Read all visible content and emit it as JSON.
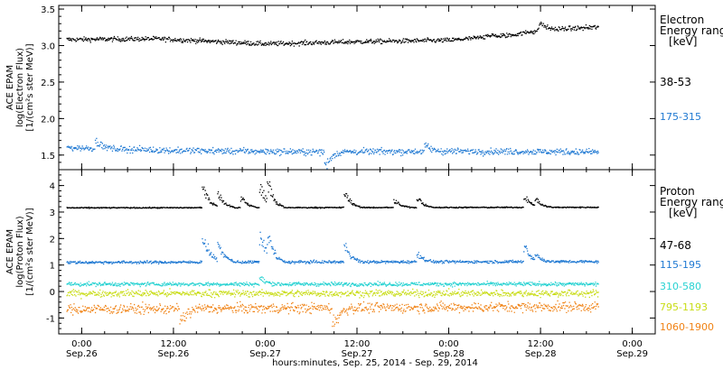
{
  "chart_data": {
    "type": "scatter",
    "xlabel": "hours:minutes, Sep. 25, 2014 - Sep. 29, 2014",
    "x_ticks": [
      {
        "time": "0:00",
        "date": "Sep.26",
        "hour": 0
      },
      {
        "time": "12:00",
        "date": "Sep.26",
        "hour": 12
      },
      {
        "time": "0:00",
        "date": "Sep.27",
        "hour": 24
      },
      {
        "time": "12:00",
        "date": "Sep.27",
        "hour": 36
      },
      {
        "time": "0:00",
        "date": "Sep.28",
        "hour": 48
      },
      {
        "time": "12:00",
        "date": "Sep.28",
        "hour": 60
      },
      {
        "time": "0:00",
        "date": "Sep.29",
        "hour": 72
      }
    ],
    "xlim_hours": [
      -3,
      75
    ],
    "data_end_hour": 67.5,
    "panels": [
      {
        "id": "electron",
        "ylabel": [
          "ACE EPAM",
          "log(Electron Flux)",
          "[1/(cm²s ster MeV)]"
        ],
        "ylim": [
          1.3,
          3.55
        ],
        "y_ticks": [
          "1.5",
          "2.0",
          "2.5",
          "3.0",
          "3.5"
        ],
        "y_tick_values": [
          1.5,
          2.0,
          2.5,
          3.0,
          3.5
        ],
        "legend_title": [
          "Electron",
          "Energy ranges",
          "[keV]"
        ],
        "series": [
          {
            "name": "38-53",
            "color": "#000000",
            "trend": [
              [
                -2,
                3.09
              ],
              [
                10,
                3.1
              ],
              [
                24,
                3.03
              ],
              [
                36,
                3.06
              ],
              [
                48,
                3.08
              ],
              [
                56,
                3.15
              ],
              [
                60,
                3.22
              ],
              [
                67.5,
                3.26
              ]
            ],
            "noise": 0.03,
            "spikes": [
              [
                60,
                3.35
              ],
              [
                53,
                3.17
              ]
            ]
          },
          {
            "name": "175-315",
            "color": "#1e78d2",
            "trend": [
              [
                -2,
                1.61
              ],
              [
                12,
                1.57
              ],
              [
                30,
                1.55
              ],
              [
                48,
                1.56
              ],
              [
                67.5,
                1.55
              ]
            ],
            "noise": 0.04,
            "spikes": [
              [
                2,
                1.72
              ],
              [
                32,
                1.32
              ],
              [
                45,
                1.65
              ]
            ]
          }
        ]
      },
      {
        "id": "proton",
        "ylabel": [
          "ACE EPAM",
          "log(Proton Flux)",
          "[1/(cm²s ster MeV)]"
        ],
        "ylim": [
          -1.6,
          4.6
        ],
        "y_ticks": [
          "-1",
          "0",
          "1",
          "2",
          "3",
          "4"
        ],
        "y_tick_values": [
          -1,
          0,
          1,
          2,
          3,
          4
        ],
        "legend_title": [
          "Proton",
          "Energy ranges",
          "[keV]"
        ],
        "series": [
          {
            "name": "47-68",
            "color": "#000000",
            "trend": [
              [
                -2,
                3.18
              ],
              [
                67.5,
                3.2
              ]
            ],
            "noise": 0.02,
            "spikes": [
              [
                16,
                4.1
              ],
              [
                18,
                3.8
              ],
              [
                21,
                3.6
              ],
              [
                23.5,
                4.1
              ],
              [
                24.5,
                4.0
              ],
              [
                34.5,
                3.9
              ],
              [
                41,
                3.5
              ],
              [
                44,
                3.6
              ],
              [
                58,
                3.7
              ],
              [
                59.5,
                3.5
              ]
            ]
          },
          {
            "name": "115-195",
            "color": "#1e78d2",
            "trend": [
              [
                -2,
                1.12
              ],
              [
                67.5,
                1.15
              ]
            ],
            "noise": 0.05,
            "spikes": [
              [
                16,
                2.4
              ],
              [
                18,
                1.9
              ],
              [
                23.5,
                2.3
              ],
              [
                24.5,
                2.0
              ],
              [
                34.5,
                1.9
              ],
              [
                44,
                1.5
              ],
              [
                58,
                1.8
              ],
              [
                59.5,
                1.4
              ]
            ]
          },
          {
            "name": "310-580",
            "color": "#28d2d2",
            "trend": [
              [
                -2,
                0.3
              ],
              [
                67.5,
                0.3
              ]
            ],
            "noise": 0.07,
            "spikes": [
              [
                23.5,
                0.55
              ]
            ]
          },
          {
            "name": "795-1193",
            "color": "#c8dc14",
            "trend": [
              [
                -2,
                -0.05
              ],
              [
                67.5,
                -0.05
              ]
            ],
            "noise": 0.12,
            "spikes": []
          },
          {
            "name": "1060-1900",
            "color": "#f08214",
            "trend": [
              [
                -2,
                -0.65
              ],
              [
                67.5,
                -0.55
              ]
            ],
            "noise": 0.18,
            "spikes": [
              [
                33,
                -1.45
              ],
              [
                13,
                -1.3
              ]
            ]
          }
        ]
      }
    ]
  }
}
